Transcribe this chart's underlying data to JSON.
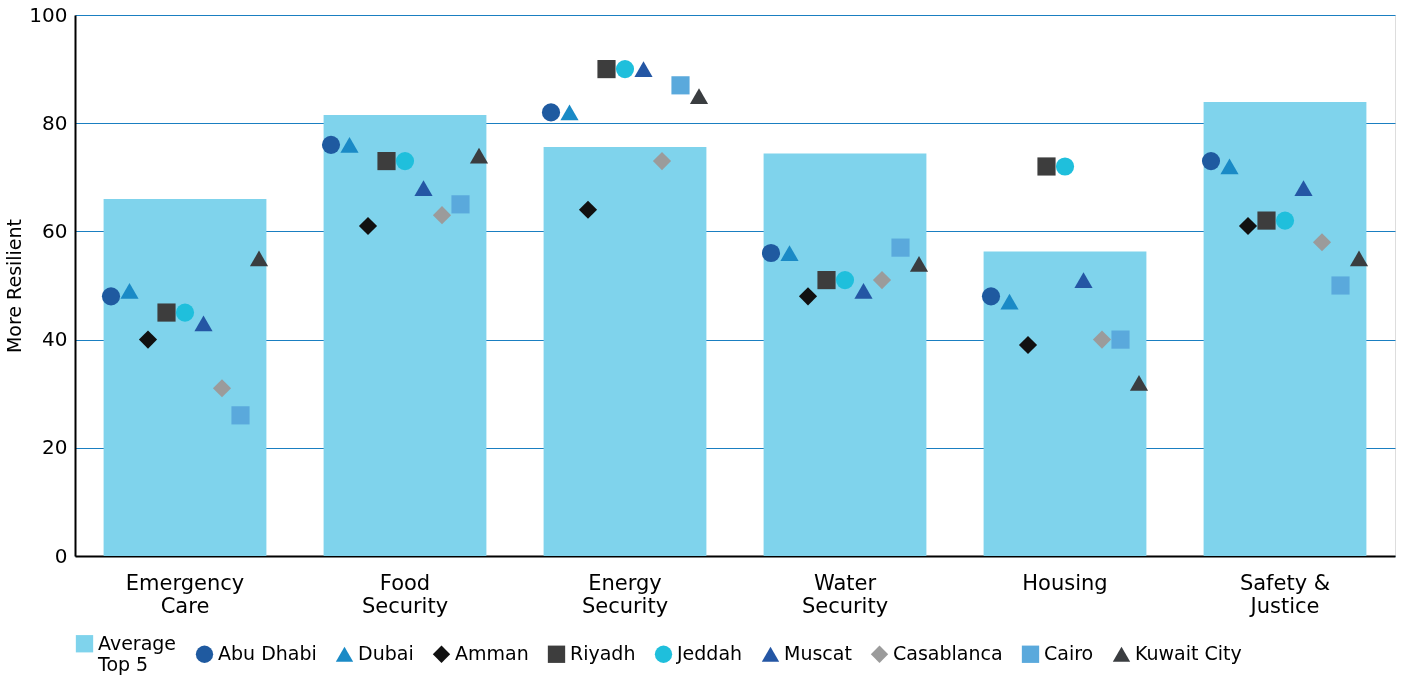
{
  "chart_data": {
    "type": "bar",
    "ylabel": "More Resilient",
    "categories": [
      "Emergency\nCare",
      "Food\nSecurity",
      "Energy\nSecurity",
      "Water\nSecurity",
      "Housing",
      "Safety &\nJustice"
    ],
    "ylim": [
      0,
      100
    ],
    "yticks": [
      0,
      20,
      40,
      60,
      80,
      100
    ],
    "grid": "y",
    "legend": "bottom",
    "series": [
      {
        "name": "Average\nTop 5",
        "color": "#7fd3ec",
        "values": [
          66,
          81.5,
          75.6,
          74.4,
          56.3,
          83.9
        ]
      },
      {
        "name": "Abu Dhabi",
        "type": "scatter",
        "marker": "circle",
        "color": "#1f5aa0",
        "values": [
          48,
          76,
          82,
          56,
          48,
          73
        ]
      },
      {
        "name": "Dubai",
        "type": "scatter",
        "marker": "triangle",
        "color": "#1a8ac6",
        "values": [
          49,
          76,
          82,
          56,
          47,
          72
        ]
      },
      {
        "name": "Amman",
        "type": "scatter",
        "marker": "diamond",
        "color": "#111111",
        "values": [
          40,
          61,
          64,
          48,
          39,
          61
        ]
      },
      {
        "name": "Riyadh",
        "type": "scatter",
        "marker": "square",
        "color": "#3d3d3d",
        "values": [
          45,
          73,
          90,
          51,
          72,
          62
        ]
      },
      {
        "name": "Jeddah",
        "type": "scatter",
        "marker": "circle",
        "color": "#1fbfdc",
        "values": [
          45,
          73,
          90,
          51,
          72,
          62
        ]
      },
      {
        "name": "Muscat",
        "type": "scatter",
        "marker": "triangle",
        "color": "#2456a4",
        "values": [
          43,
          68,
          90,
          49,
          51,
          68
        ]
      },
      {
        "name": "Casablanca",
        "type": "scatter",
        "marker": "diamond",
        "color": "#9b9b9b",
        "values": [
          31,
          63,
          73,
          51,
          40,
          58
        ]
      },
      {
        "name": "Cairo",
        "type": "scatter",
        "marker": "square",
        "color": "#5aa9dc",
        "values": [
          26,
          65,
          87,
          57,
          40,
          50
        ]
      },
      {
        "name": "Kuwait City",
        "type": "scatter",
        "marker": "triangle",
        "color": "#3a3d40",
        "values": [
          55,
          74,
          85,
          54,
          32,
          55
        ]
      }
    ]
  }
}
